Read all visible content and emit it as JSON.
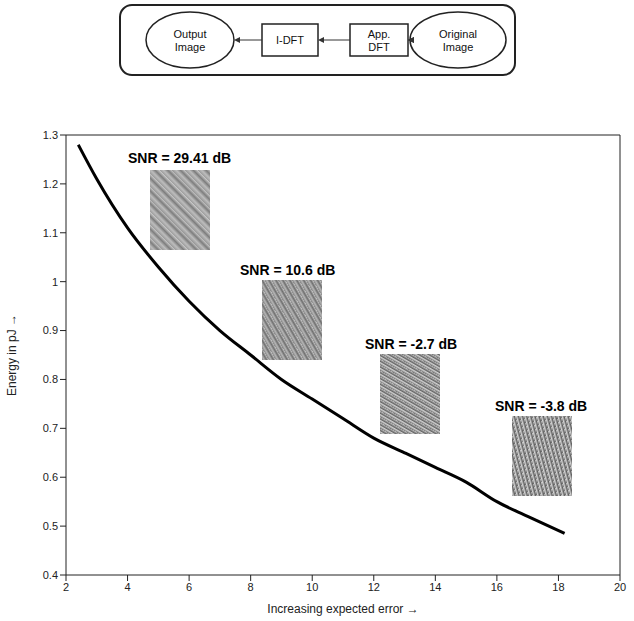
{
  "diagram": {
    "nodes": [
      "Output Image",
      "I-DFT",
      "App. DFT",
      "Original Image"
    ]
  },
  "chart_data": {
    "type": "line",
    "x_label": "Increasing expected error →",
    "y_label": "Energy in pJ →",
    "x": [
      2.4,
      3,
      4,
      5,
      6,
      7,
      8,
      9,
      10,
      11,
      12,
      13,
      14,
      15,
      16,
      17,
      18.2
    ],
    "values": [
      1.28,
      1.21,
      1.11,
      1.03,
      0.96,
      0.9,
      0.85,
      0.8,
      0.76,
      0.72,
      0.68,
      0.65,
      0.62,
      0.59,
      0.55,
      0.52,
      0.485
    ],
    "color": "#000000",
    "marker": "none",
    "xlim": [
      2,
      20
    ],
    "ylim": [
      0.4,
      1.3
    ],
    "xticks": [
      2,
      4,
      6,
      8,
      10,
      12,
      14,
      16,
      18,
      20
    ],
    "yticks": [
      0.4,
      0.5,
      0.6,
      0.7,
      0.8,
      0.9,
      1,
      1.1,
      1.2,
      1.3
    ],
    "grid": false,
    "annotations": [
      "SNR = 29.41 dB",
      "SNR = 10.6 dB",
      "SNR = -2.7 dB",
      "SNR = -3.8 dB"
    ]
  }
}
